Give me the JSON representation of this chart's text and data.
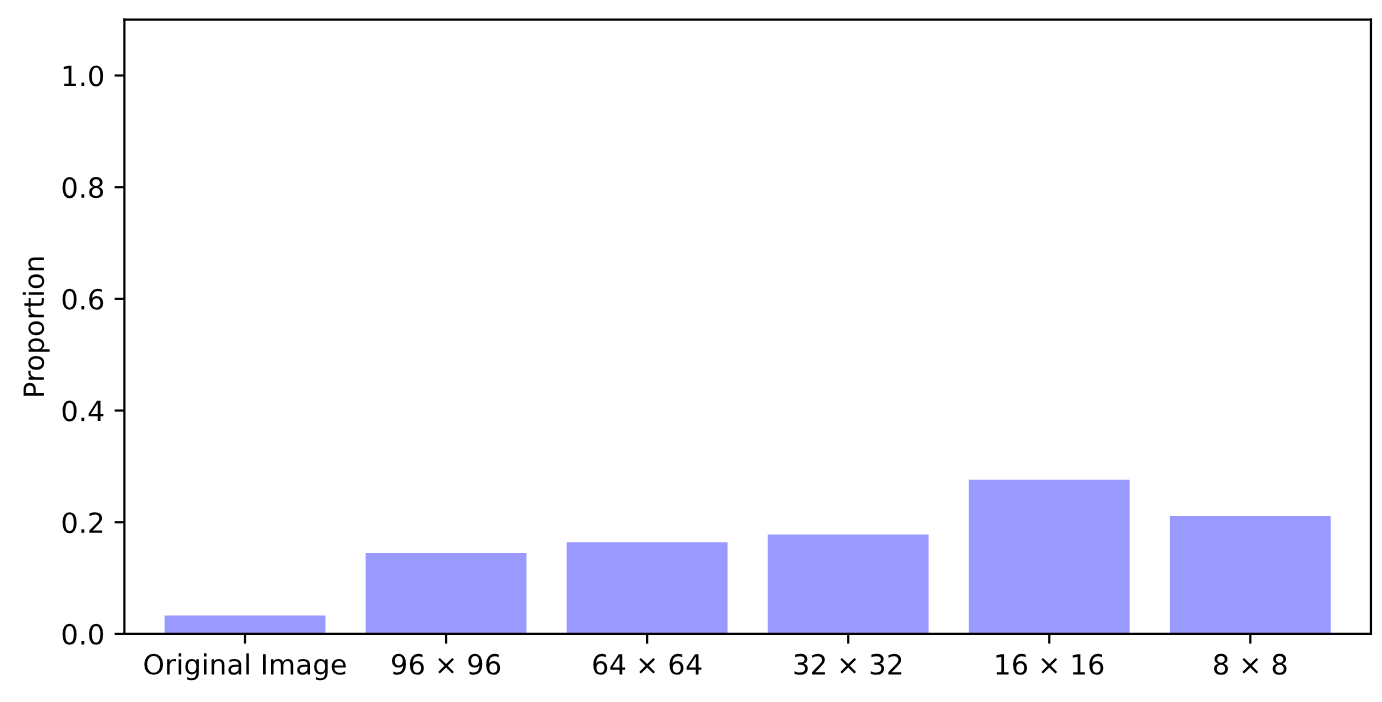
{
  "chart_data": {
    "type": "bar",
    "ylabel": "Proportion",
    "categories": [
      "Original Image",
      "96 × 96",
      "64 × 64",
      "32 × 32",
      "16 × 16",
      "8 × 8"
    ],
    "series": [
      {
        "color": "#9999ff",
        "values": [
          0.033,
          0.145,
          0.164,
          0.178,
          0.276,
          0.211
        ]
      }
    ],
    "ylim": [
      0,
      1.1
    ],
    "yticks": [
      {
        "value": 0,
        "label": "0.0"
      },
      0.2,
      0.4,
      0.6,
      0.8,
      {
        "value": 1,
        "label": "1.0"
      }
    ],
    "grid": false,
    "legend": false
  }
}
